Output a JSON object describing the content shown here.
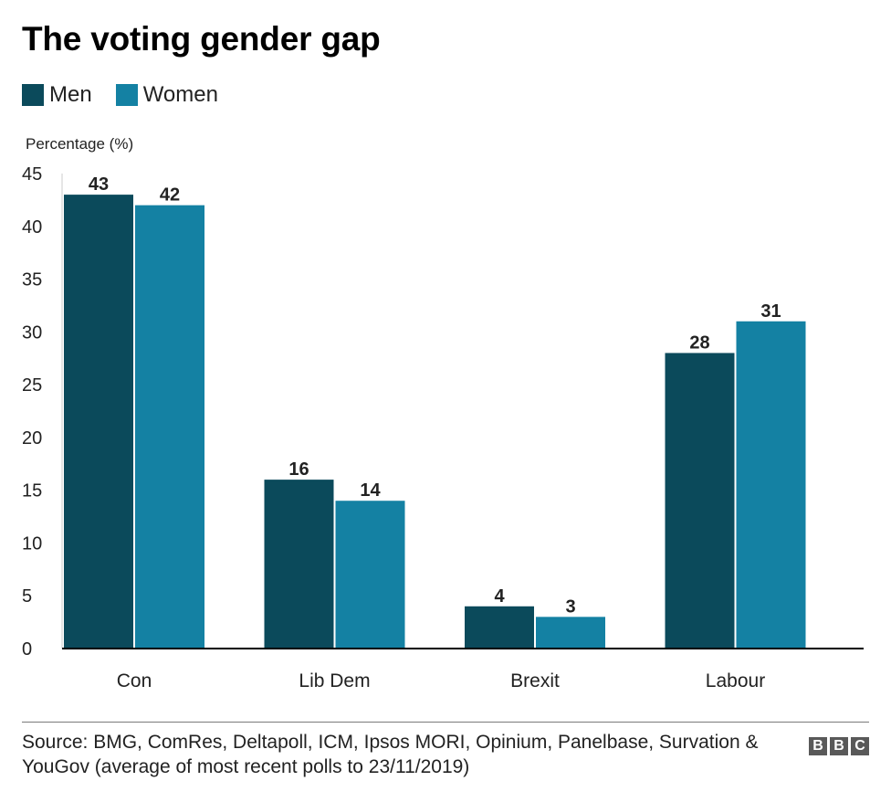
{
  "title": "The voting gender gap",
  "source": "Source: BMG, ComRes, Deltapoll, ICM, Ipsos MORI, Opinium, Panelbase, Survation & YouGov (average of most recent polls to 23/11/2019)",
  "logo_text": "BBC",
  "colors": {
    "men": "#0b4a5b",
    "women": "#1481a3",
    "axis": "#000000",
    "text": "#222222"
  },
  "chart_data": {
    "type": "bar",
    "title": "The voting gender gap",
    "ylabel": "Percentage (%)",
    "xlabel": "",
    "categories": [
      "Con",
      "Lib Dem",
      "Brexit",
      "Labour"
    ],
    "series": [
      {
        "name": "Men",
        "values": [
          43,
          16,
          4,
          28
        ]
      },
      {
        "name": "Women",
        "values": [
          42,
          14,
          3,
          31
        ]
      }
    ],
    "ylim": [
      0,
      45
    ],
    "yticks": [
      0,
      5,
      10,
      15,
      20,
      25,
      30,
      35,
      40,
      45
    ],
    "grid": false,
    "legend": "top-left"
  }
}
